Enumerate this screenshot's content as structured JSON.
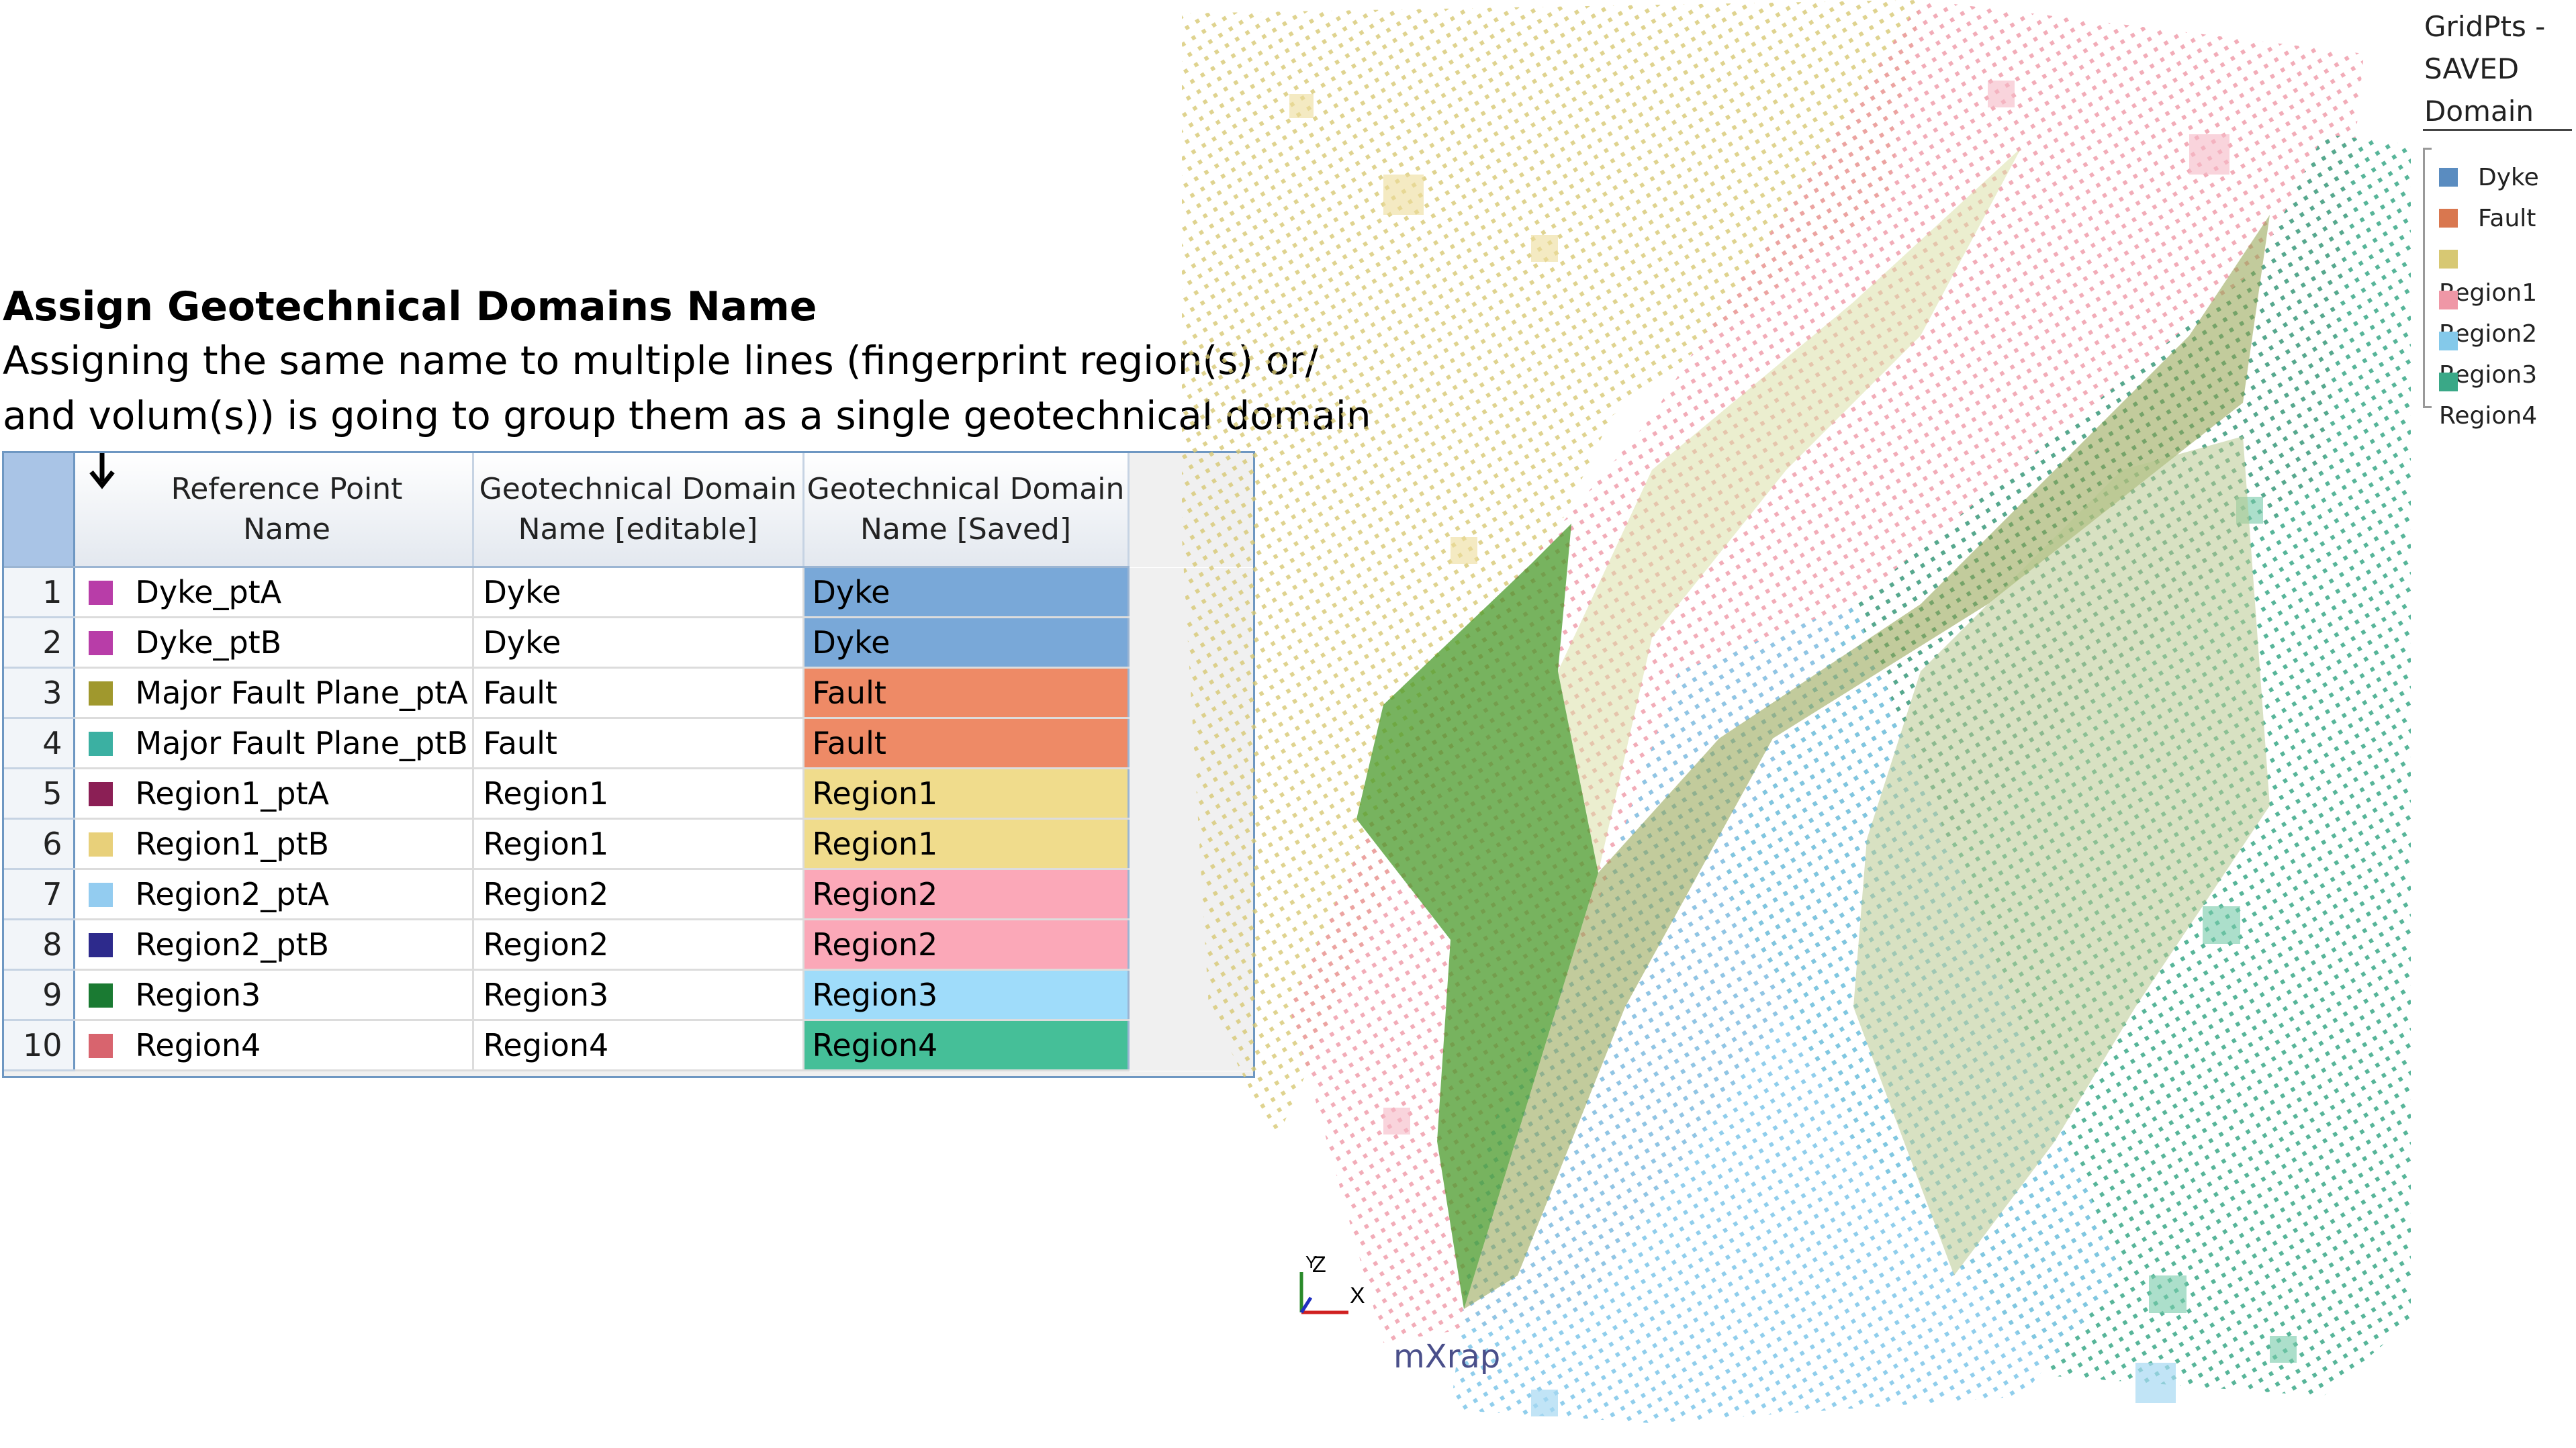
{
  "heading": {
    "title": "Assign Geotechnical Domains Name",
    "description_line1": "Assigning the same name to multiple lines (fingerprint region(s) or/",
    "description_line2": "and volum(s)) is going to group them as a single geotechnical domain"
  },
  "table": {
    "sort_icon": "down-arrow-icon",
    "columns": {
      "reference_line1": "Reference Point",
      "reference_line2": "Name",
      "editable_line1": "Geotechnical Domain",
      "editable_line2": "Name [editable]",
      "saved_line1": "Geotechnical Domain",
      "saved_line2": "Name [Saved]"
    },
    "rows": [
      {
        "num": "1",
        "ref": "Dyke_ptA",
        "ref_color": "#b83da8",
        "editable": "Dyke",
        "saved": "Dyke",
        "saved_color": "#79a8d8"
      },
      {
        "num": "2",
        "ref": "Dyke_ptB",
        "ref_color": "#b83da8",
        "editable": "Dyke",
        "saved": "Dyke",
        "saved_color": "#79a8d8"
      },
      {
        "num": "3",
        "ref": "Major Fault Plane_ptA",
        "ref_color": "#a0982d",
        "editable": "Fault",
        "saved": "Fault",
        "saved_color": "#ee8a66"
      },
      {
        "num": "4",
        "ref": "Major Fault Plane_ptB",
        "ref_color": "#3bb0a2",
        "editable": "Fault",
        "saved": "Fault",
        "saved_color": "#ee8a66"
      },
      {
        "num": "5",
        "ref": "Region1_ptA",
        "ref_color": "#8b1f55",
        "editable": "Region1",
        "saved": "Region1",
        "saved_color": "#f0dc8c"
      },
      {
        "num": "6",
        "ref": "Region1_ptB",
        "ref_color": "#e8d07a",
        "editable": "Region1",
        "saved": "Region1",
        "saved_color": "#f0dc8c"
      },
      {
        "num": "7",
        "ref": "Region2_ptA",
        "ref_color": "#93ccf0",
        "editable": "Region2",
        "saved": "Region2",
        "saved_color": "#fba8b8"
      },
      {
        "num": "8",
        "ref": "Region2_ptB",
        "ref_color": "#2d2a8c",
        "editable": "Region2",
        "saved": "Region2",
        "saved_color": "#fba8b8"
      },
      {
        "num": "9",
        "ref": "Region3",
        "ref_color": "#1a7a32",
        "editable": "Region3",
        "saved": "Region3",
        "saved_color": "#9fdcfa"
      },
      {
        "num": "10",
        "ref": "Region4",
        "ref_color": "#d8646e",
        "editable": "Region4",
        "saved": "Region4",
        "saved_color": "#45bf98"
      }
    ]
  },
  "legend": {
    "title_line1": "GridPts -",
    "title_line2": "SAVED",
    "title_line3": "Domain",
    "items": [
      {
        "label": "Dyke",
        "color": "#5a8cc0"
      },
      {
        "label": "Fault",
        "color": "#d9774f"
      },
      {
        "label": "Region1",
        "color": "#d7c873"
      },
      {
        "label": "Region2",
        "color": "#ef97a6"
      },
      {
        "label": "Region3",
        "color": "#84c9ea"
      },
      {
        "label": "Region4",
        "color": "#3aa887"
      }
    ]
  },
  "axes": {
    "x": "X",
    "y": "Y",
    "z": "Z"
  },
  "logo": "mXrap"
}
